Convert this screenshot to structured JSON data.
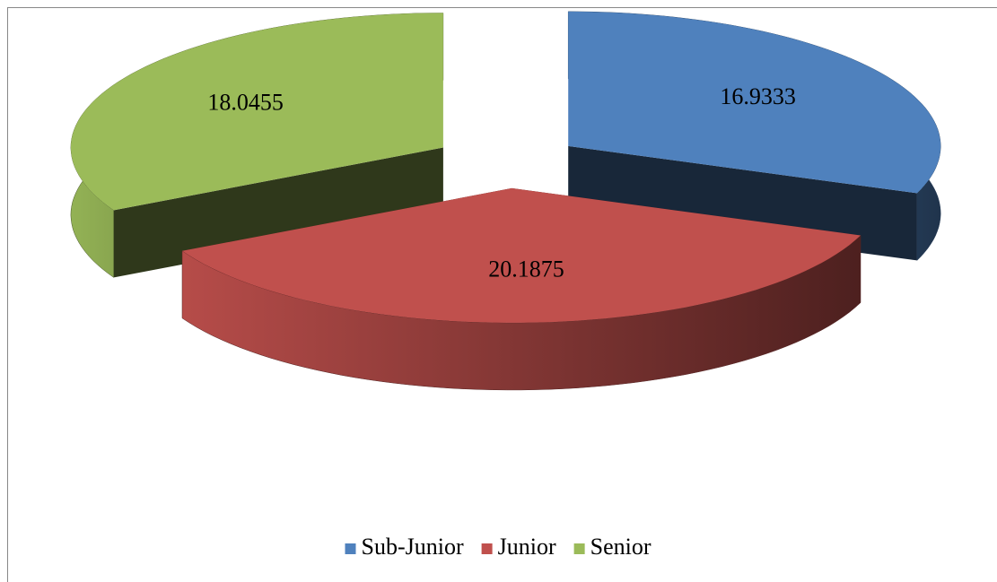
{
  "chart_data": {
    "type": "pie3d",
    "categories": [
      "Sub-Junior",
      "Junior",
      "Senior"
    ],
    "values": [
      16.9333,
      20.1875,
      18.0455
    ],
    "colors": [
      "#4f81bd",
      "#c0504d",
      "#9bbb59"
    ],
    "legend": "bottom"
  }
}
